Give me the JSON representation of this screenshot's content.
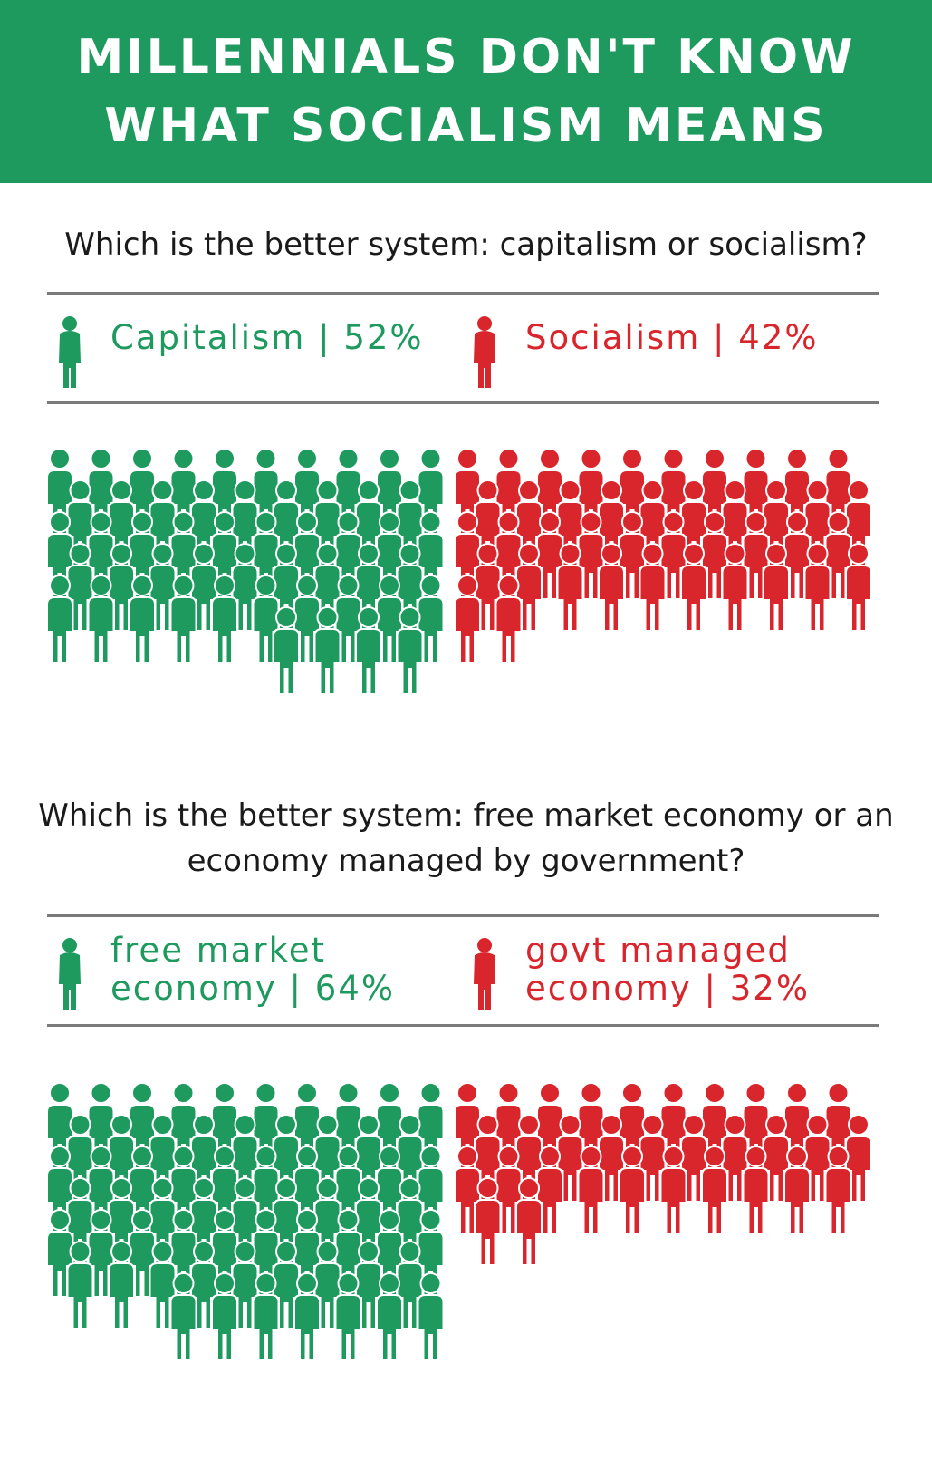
{
  "header": {
    "title": "MILLENNIALS DON'T KNOW WHAT SOCIALISM MEANS"
  },
  "colors": {
    "brand": "#1e9a5f",
    "capitalism": "#1e9a5f",
    "socialism": "#d8262c",
    "rule": "#7a7a7a"
  },
  "legend_icon": "person-icon",
  "chart_data": [
    {
      "type": "pictogram",
      "title": "Which is the better system: capitalism or socialism?",
      "categories": [
        "Capitalism",
        "Socialism"
      ],
      "values": [
        52,
        42
      ],
      "unit": "%",
      "legend": [
        {
          "label": "Capitalism | 52%",
          "color": "#1e9a5f"
        },
        {
          "label": "Socialism | 42%",
          "color": "#d8262c"
        }
      ]
    },
    {
      "type": "pictogram",
      "title": "Which is the better system: free market economy or an economy managed by government?",
      "categories": [
        "free market economy",
        "govt managed economy"
      ],
      "values": [
        64,
        32
      ],
      "unit": "%",
      "legend": [
        {
          "label": "free market economy | 64%",
          "color": "#1e9a5f"
        },
        {
          "label": "govt managed economy | 32%",
          "color": "#d8262c"
        }
      ]
    }
  ]
}
